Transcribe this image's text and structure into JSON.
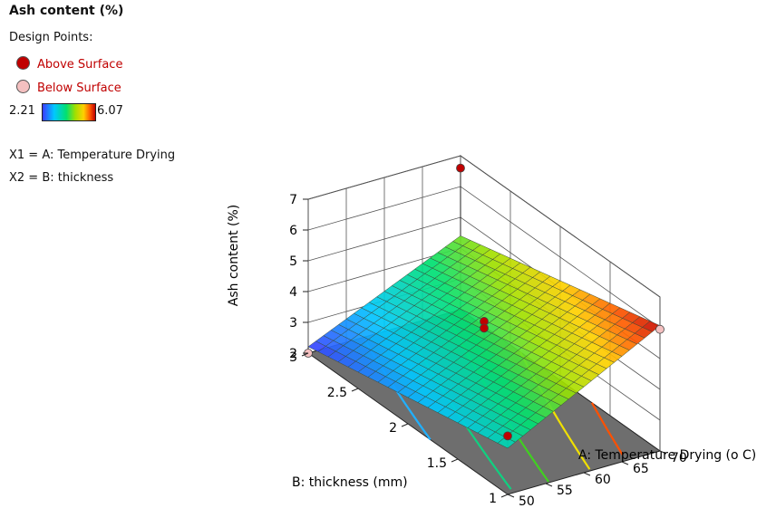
{
  "legend": {
    "title": "Ash content (%)",
    "design_points_label": "Design Points:",
    "above_label": "Above Surface",
    "below_label": "Below Surface",
    "scale_min": "2.21",
    "scale_max": "6.07",
    "x1_label": "X1 = A: Temperature Drying",
    "x2_label": "X2 = B: thickness"
  },
  "colors": {
    "above_point": "#c00000",
    "below_point": "#f4c0c0",
    "floor": "#6e6e6e",
    "legend_text": "#c00000"
  },
  "chart_data": {
    "type": "surface3d",
    "title": "",
    "zlabel": "Ash content (%)",
    "xlabel": "B: thickness (mm)",
    "ylabel": "A: Temperature Drying (o C)",
    "x_ticks": [
      "1",
      "1.5",
      "2",
      "2.5",
      "3"
    ],
    "y_ticks": [
      "50",
      "55",
      "60",
      "65",
      "70"
    ],
    "z_ticks": [
      "2",
      "3",
      "4",
      "5",
      "6",
      "7"
    ],
    "x_range": [
      1,
      3
    ],
    "y_range": [
      50,
      70
    ],
    "z_range": [
      2,
      7
    ],
    "color_range": [
      2.21,
      6.07
    ],
    "surface_corners": {
      "thickness_1_temp_50": 3.5,
      "thickness_3_temp_50": 2.21,
      "thickness_1_temp_70": 6.07,
      "thickness_3_temp_70": 4.4
    },
    "contour_lines": [
      {
        "level": 3.0,
        "color": "#20b0ff"
      },
      {
        "level": 3.6,
        "color": "#10d080"
      },
      {
        "level": 4.2,
        "color": "#40d020"
      },
      {
        "level": 4.9,
        "color": "#f0e000"
      },
      {
        "level": 5.5,
        "color": "#ff5000"
      }
    ],
    "design_points": [
      {
        "thickness": 1,
        "temperature": 50,
        "value": 3.9,
        "position": "above"
      },
      {
        "thickness": 3,
        "temperature": 50,
        "value": 2.0,
        "position": "below"
      },
      {
        "thickness": 2,
        "temperature": 60,
        "value": 4.62,
        "position": "above"
      },
      {
        "thickness": 2,
        "temperature": 60,
        "value": 4.4,
        "position": "above"
      },
      {
        "thickness": 1,
        "temperature": 70,
        "value": 5.95,
        "position": "below"
      },
      {
        "thickness": 3,
        "temperature": 70,
        "value": 6.6,
        "position": "above"
      }
    ]
  }
}
